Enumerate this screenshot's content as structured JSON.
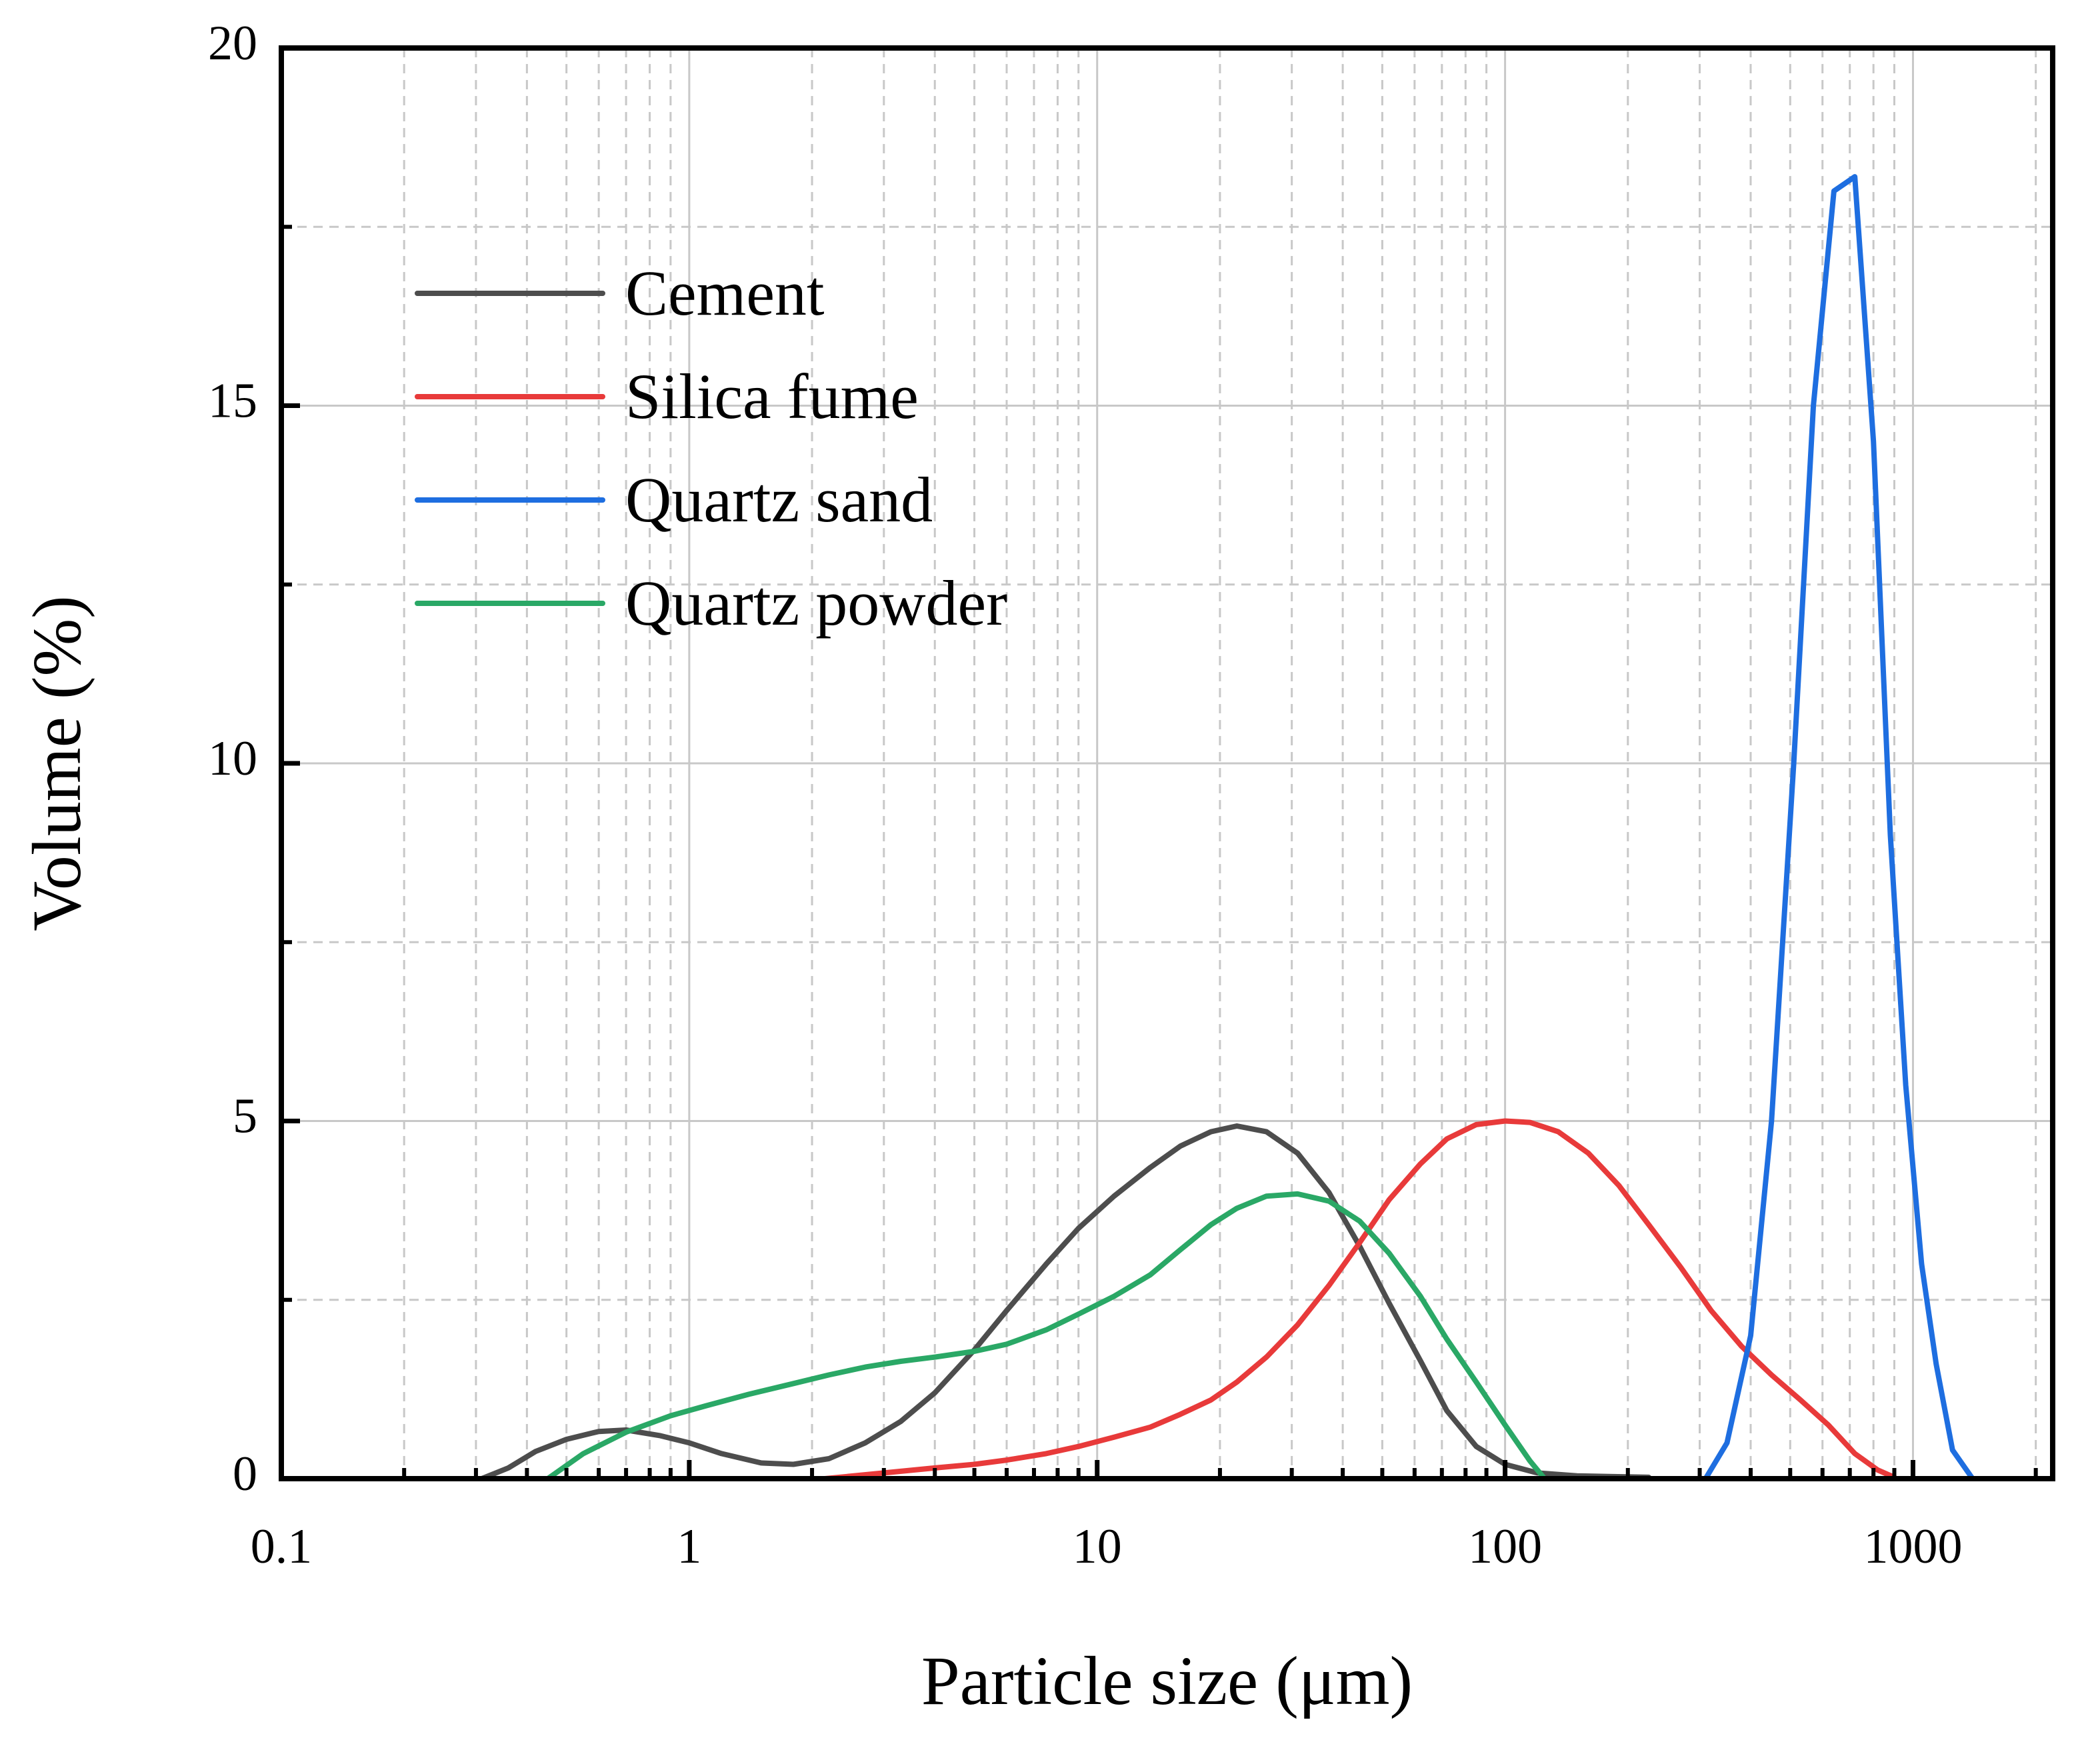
{
  "chart_data": {
    "type": "line",
    "title": "",
    "xlabel": "Particle size (μm)",
    "ylabel": "Volume (%)",
    "xscale": "log",
    "xlim": [
      0.1,
      2200
    ],
    "ylim": [
      0,
      20
    ],
    "grid": true,
    "legend_position": "top-left",
    "xticks": [
      {
        "value": 0.1,
        "label": "0.1"
      },
      {
        "value": 1,
        "label": "1"
      },
      {
        "value": 10,
        "label": "10"
      },
      {
        "value": 100,
        "label": "100"
      },
      {
        "value": 1000,
        "label": "1000"
      }
    ],
    "yticks": [
      {
        "value": 0,
        "label": "0"
      },
      {
        "value": 5,
        "label": "5"
      },
      {
        "value": 10,
        "label": "10"
      },
      {
        "value": 15,
        "label": "15"
      },
      {
        "value": 20,
        "label": "20"
      }
    ],
    "series": [
      {
        "name": "Cement",
        "color": "#4d4d4d",
        "points": [
          [
            0.31,
            0
          ],
          [
            0.36,
            0.15
          ],
          [
            0.42,
            0.38
          ],
          [
            0.5,
            0.55
          ],
          [
            0.6,
            0.66
          ],
          [
            0.7,
            0.68
          ],
          [
            0.85,
            0.6
          ],
          [
            1.0,
            0.5
          ],
          [
            1.2,
            0.35
          ],
          [
            1.5,
            0.22
          ],
          [
            1.8,
            0.2
          ],
          [
            2.2,
            0.28
          ],
          [
            2.7,
            0.5
          ],
          [
            3.3,
            0.8
          ],
          [
            4.0,
            1.2
          ],
          [
            5.0,
            1.8
          ],
          [
            6.0,
            2.35
          ],
          [
            7.5,
            3.0
          ],
          [
            9.0,
            3.5
          ],
          [
            11,
            3.95
          ],
          [
            13.5,
            4.35
          ],
          [
            16,
            4.65
          ],
          [
            19,
            4.85
          ],
          [
            22,
            4.93
          ],
          [
            26,
            4.85
          ],
          [
            31,
            4.55
          ],
          [
            37,
            4.0
          ],
          [
            44,
            3.25
          ],
          [
            52,
            2.45
          ],
          [
            62,
            1.65
          ],
          [
            72,
            0.95
          ],
          [
            85,
            0.45
          ],
          [
            100,
            0.2
          ],
          [
            120,
            0.08
          ],
          [
            150,
            0.04
          ],
          [
            180,
            0.03
          ],
          [
            225,
            0.02
          ]
        ]
      },
      {
        "name": "Silica fume",
        "color": "#e83a3a",
        "points": [
          [
            2.15,
            0
          ],
          [
            3.0,
            0.08
          ],
          [
            4.0,
            0.15
          ],
          [
            5.0,
            0.2
          ],
          [
            6.0,
            0.26
          ],
          [
            7.5,
            0.35
          ],
          [
            9.0,
            0.45
          ],
          [
            11,
            0.58
          ],
          [
            13.5,
            0.72
          ],
          [
            16,
            0.9
          ],
          [
            19,
            1.1
          ],
          [
            22,
            1.35
          ],
          [
            26,
            1.7
          ],
          [
            31,
            2.15
          ],
          [
            37,
            2.7
          ],
          [
            44,
            3.3
          ],
          [
            52,
            3.9
          ],
          [
            62,
            4.4
          ],
          [
            72,
            4.75
          ],
          [
            85,
            4.95
          ],
          [
            100,
            5.0
          ],
          [
            115,
            4.98
          ],
          [
            135,
            4.85
          ],
          [
            160,
            4.55
          ],
          [
            190,
            4.1
          ],
          [
            225,
            3.55
          ],
          [
            270,
            2.95
          ],
          [
            320,
            2.35
          ],
          [
            380,
            1.85
          ],
          [
            450,
            1.45
          ],
          [
            530,
            1.1
          ],
          [
            620,
            0.75
          ],
          [
            720,
            0.35
          ],
          [
            820,
            0.12
          ],
          [
            900,
            0.02
          ]
        ]
      },
      {
        "name": "Quartz sand",
        "color": "#1e6ee0",
        "points": [
          [
            310,
            0
          ],
          [
            350,
            0.5
          ],
          [
            400,
            2.0
          ],
          [
            450,
            5.0
          ],
          [
            510,
            10.0
          ],
          [
            570,
            15.0
          ],
          [
            640,
            18.0
          ],
          [
            720,
            18.2
          ],
          [
            800,
            14.5
          ],
          [
            880,
            9.0
          ],
          [
            960,
            5.5
          ],
          [
            1050,
            3.0
          ],
          [
            1140,
            1.6
          ],
          [
            1250,
            0.4
          ],
          [
            1400,
            0.0
          ]
        ]
      },
      {
        "name": "Quartz powder",
        "color": "#2aa866",
        "points": [
          [
            0.45,
            0
          ],
          [
            0.55,
            0.35
          ],
          [
            0.7,
            0.65
          ],
          [
            0.9,
            0.88
          ],
          [
            1.1,
            1.02
          ],
          [
            1.4,
            1.18
          ],
          [
            1.8,
            1.33
          ],
          [
            2.2,
            1.45
          ],
          [
            2.7,
            1.56
          ],
          [
            3.3,
            1.64
          ],
          [
            4.0,
            1.7
          ],
          [
            5.0,
            1.78
          ],
          [
            6.0,
            1.88
          ],
          [
            7.5,
            2.08
          ],
          [
            9.0,
            2.3
          ],
          [
            11,
            2.55
          ],
          [
            13.5,
            2.85
          ],
          [
            16,
            3.2
          ],
          [
            19,
            3.55
          ],
          [
            22,
            3.78
          ],
          [
            26,
            3.95
          ],
          [
            31,
            3.98
          ],
          [
            37,
            3.88
          ],
          [
            44,
            3.6
          ],
          [
            52,
            3.15
          ],
          [
            62,
            2.55
          ],
          [
            72,
            1.95
          ],
          [
            85,
            1.35
          ],
          [
            100,
            0.75
          ],
          [
            115,
            0.25
          ],
          [
            125,
            0.0
          ]
        ]
      }
    ]
  }
}
